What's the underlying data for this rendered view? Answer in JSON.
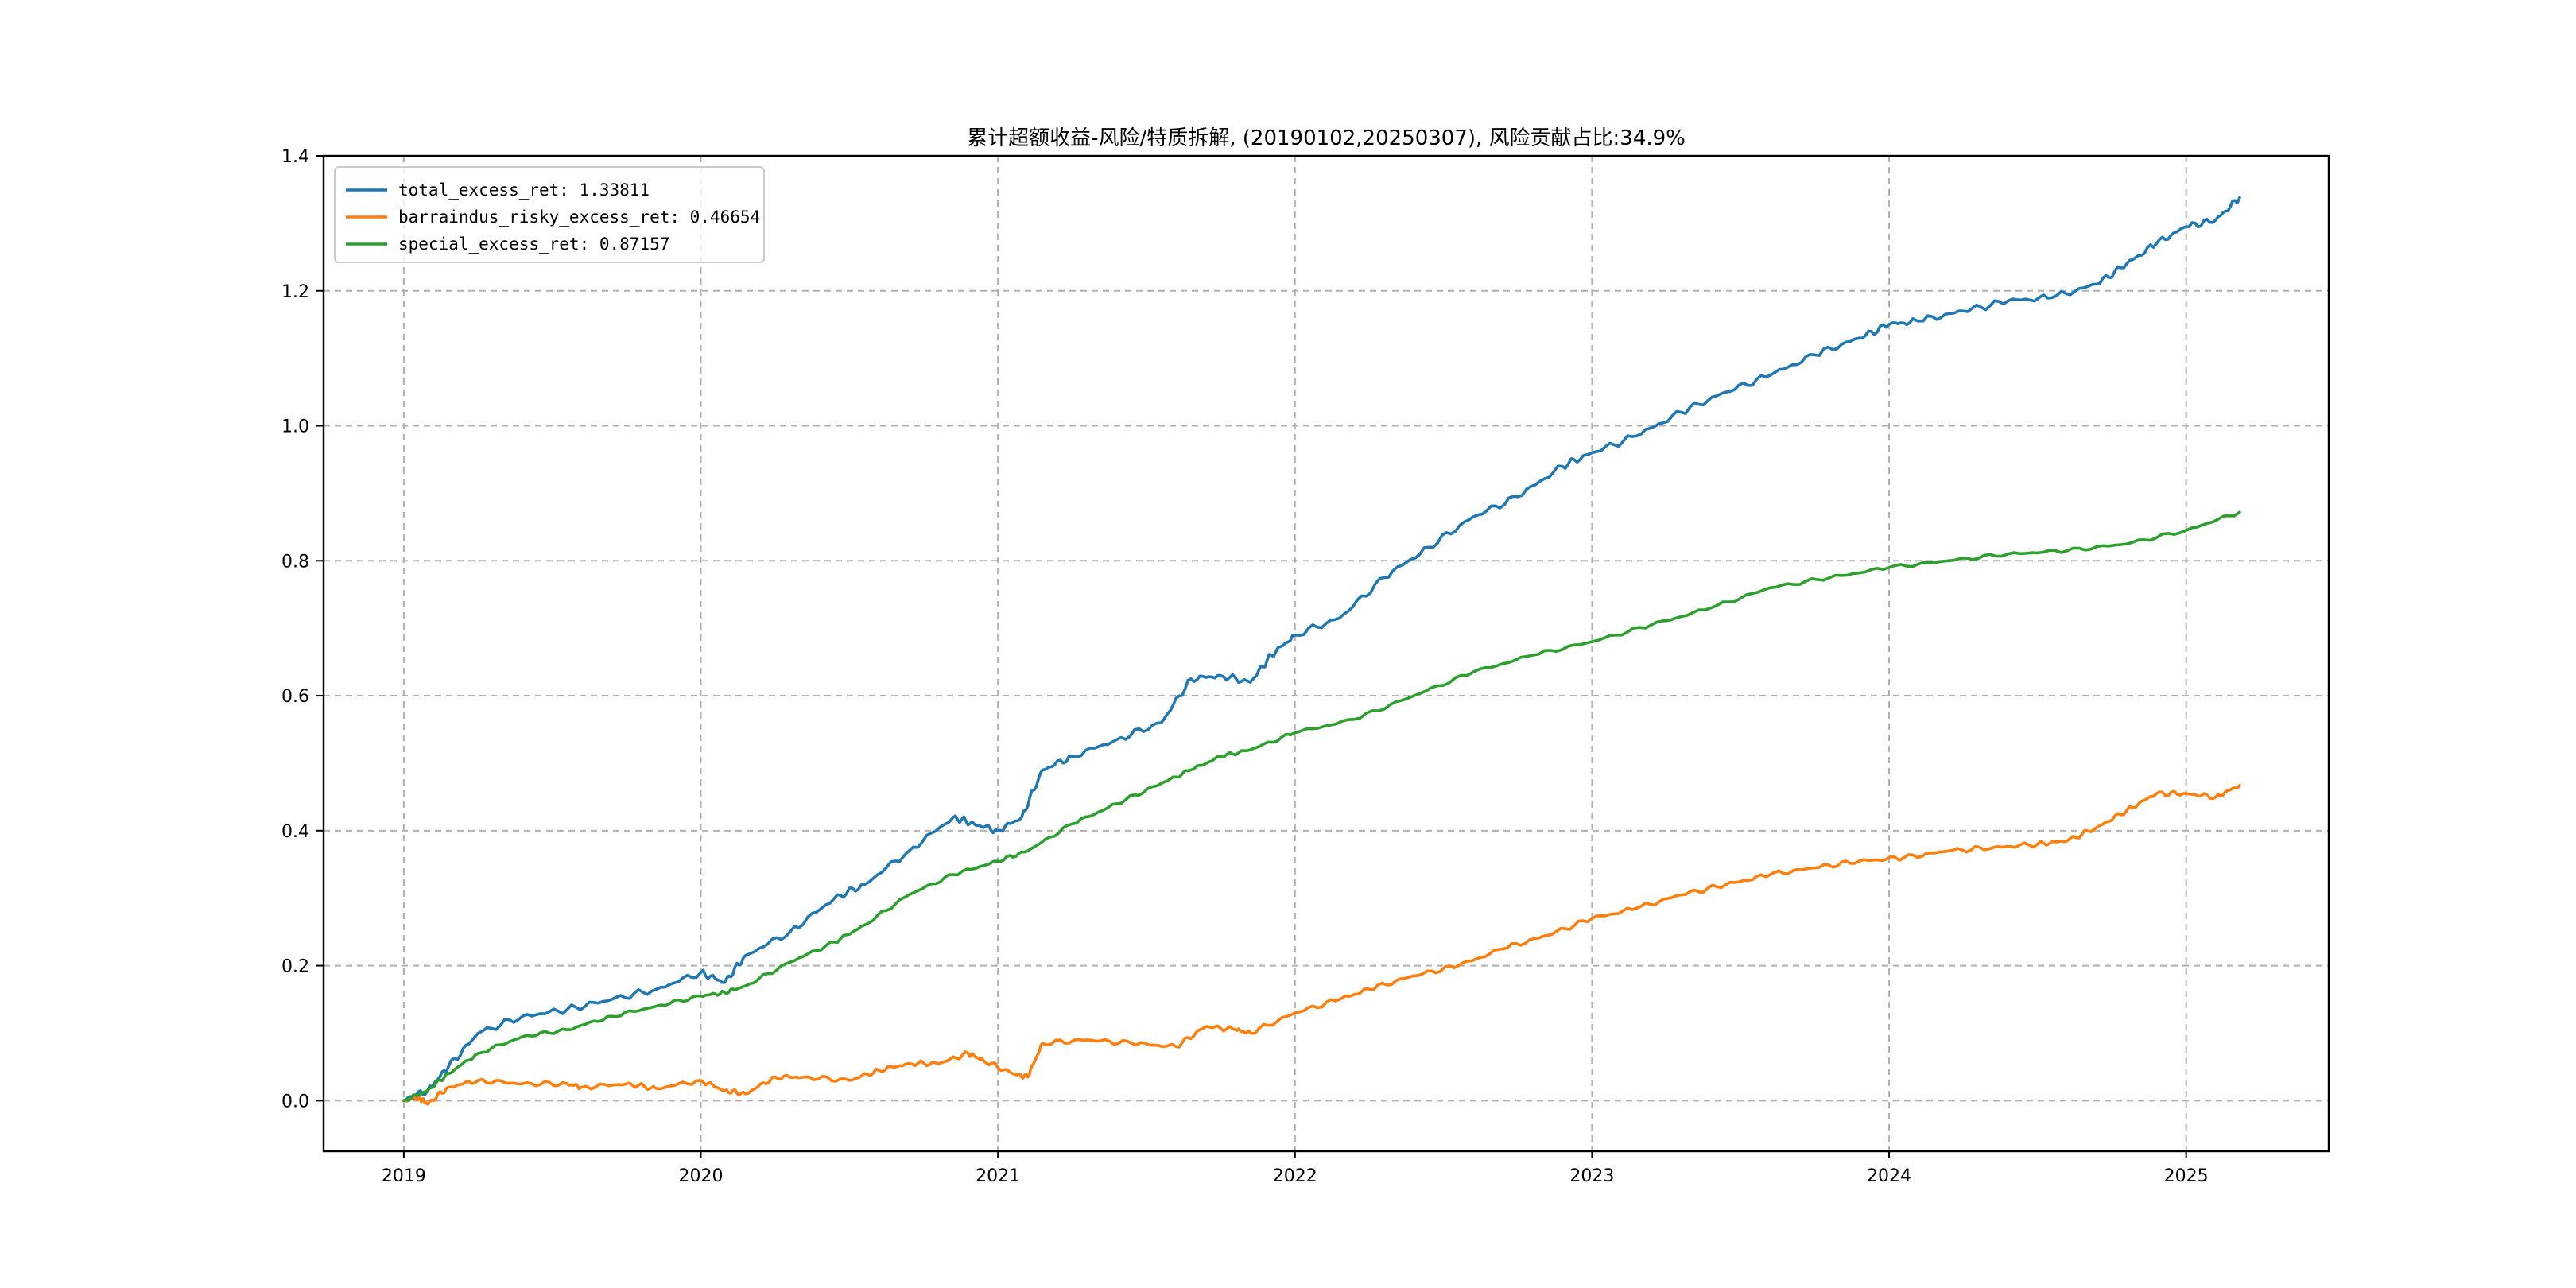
{
  "chart_data": {
    "type": "line",
    "title": "累计超额收益-风险/特质拆解, (20190102,20250307), 风险贡献占比:34.9%",
    "xlabel": "",
    "ylabel": "",
    "xlim": [
      2018.73,
      2025.48
    ],
    "ylim": [
      -0.075,
      1.4
    ],
    "xticks": [
      2019,
      2020,
      2021,
      2022,
      2023,
      2024,
      2025
    ],
    "xtick_labels": [
      "2019",
      "2020",
      "2021",
      "2022",
      "2023",
      "2024",
      "2025"
    ],
    "yticks": [
      0.0,
      0.2,
      0.4,
      0.6,
      0.8,
      1.0,
      1.2,
      1.4
    ],
    "ytick_labels": [
      "0.0",
      "0.2",
      "0.4",
      "0.6",
      "0.8",
      "1.0",
      "1.2",
      "1.4"
    ],
    "grid": true,
    "legend_position": "upper-left",
    "series": [
      {
        "name": "total_excess_ret: 1.33811",
        "color": "#1f77b4",
        "x": [
          2019.0,
          2019.08,
          2019.15,
          2019.25,
          2019.4,
          2019.55,
          2019.7,
          2019.85,
          2020.0,
          2020.08,
          2020.15,
          2020.3,
          2020.45,
          2020.55,
          2020.7,
          2020.85,
          2020.92,
          2021.0,
          2021.08,
          2021.15,
          2021.25,
          2021.4,
          2021.55,
          2021.65,
          2021.75,
          2021.85,
          2021.92,
          2022.0,
          2022.15,
          2022.3,
          2022.45,
          2022.6,
          2022.75,
          2022.9,
          2023.0,
          2023.15,
          2023.3,
          2023.45,
          2023.6,
          2023.75,
          2023.9,
          2024.0,
          2024.1,
          2024.25,
          2024.4,
          2024.55,
          2024.7,
          2024.8,
          2024.9,
          2025.0,
          2025.1,
          2025.18
        ],
        "y": [
          0.0,
          0.015,
          0.05,
          0.1,
          0.125,
          0.135,
          0.15,
          0.165,
          0.19,
          0.175,
          0.215,
          0.25,
          0.3,
          0.32,
          0.37,
          0.42,
          0.41,
          0.4,
          0.42,
          0.49,
          0.51,
          0.535,
          0.56,
          0.625,
          0.63,
          0.62,
          0.66,
          0.69,
          0.715,
          0.775,
          0.82,
          0.865,
          0.895,
          0.94,
          0.96,
          0.985,
          1.02,
          1.05,
          1.075,
          1.105,
          1.13,
          1.15,
          1.155,
          1.17,
          1.185,
          1.19,
          1.21,
          1.24,
          1.27,
          1.295,
          1.305,
          1.338
        ]
      },
      {
        "name": "barraindus_risky_excess_ret: 0.46654",
        "color": "#ff7f0e",
        "x": [
          2019.0,
          2019.05,
          2019.08,
          2019.15,
          2019.25,
          2019.4,
          2019.55,
          2019.6,
          2019.75,
          2019.85,
          2020.0,
          2020.08,
          2020.15,
          2020.25,
          2020.35,
          2020.5,
          2020.6,
          2020.7,
          2020.8,
          2020.9,
          2020.95,
          2021.05,
          2021.1,
          2021.15,
          2021.3,
          2021.45,
          2021.6,
          2021.7,
          2021.8,
          2021.85,
          2022.0,
          2022.15,
          2022.25,
          2022.4,
          2022.55,
          2022.7,
          2022.85,
          2023.0,
          2023.15,
          2023.3,
          2023.45,
          2023.6,
          2023.75,
          2023.9,
          2024.05,
          2024.2,
          2024.35,
          2024.5,
          2024.6,
          2024.7,
          2024.8,
          2024.9,
          2025.0,
          2025.1,
          2025.18
        ],
        "y": [
          0.0,
          0.005,
          -0.005,
          0.02,
          0.03,
          0.025,
          0.025,
          0.02,
          0.025,
          0.018,
          0.03,
          0.015,
          0.01,
          0.035,
          0.035,
          0.03,
          0.045,
          0.055,
          0.055,
          0.07,
          0.06,
          0.04,
          0.035,
          0.085,
          0.09,
          0.085,
          0.08,
          0.11,
          0.105,
          0.1,
          0.13,
          0.15,
          0.165,
          0.185,
          0.2,
          0.225,
          0.245,
          0.27,
          0.285,
          0.305,
          0.32,
          0.335,
          0.345,
          0.355,
          0.36,
          0.37,
          0.375,
          0.38,
          0.385,
          0.405,
          0.43,
          0.455,
          0.455,
          0.45,
          0.467
        ]
      },
      {
        "name": "special_excess_ret: 0.87157",
        "color": "#2ca02c",
        "x": [
          2019.0,
          2019.08,
          2019.15,
          2019.25,
          2019.4,
          2019.55,
          2019.7,
          2019.85,
          2020.0,
          2020.08,
          2020.15,
          2020.3,
          2020.45,
          2020.55,
          2020.7,
          2020.85,
          2021.0,
          2021.1,
          2021.25,
          2021.4,
          2021.55,
          2021.65,
          2021.75,
          2021.85,
          2022.0,
          2022.2,
          2022.4,
          2022.6,
          2022.8,
          2023.0,
          2023.2,
          2023.4,
          2023.6,
          2023.8,
          2024.0,
          2024.2,
          2024.4,
          2024.6,
          2024.8,
          2025.0,
          2025.18
        ],
        "y": [
          0.0,
          0.015,
          0.04,
          0.07,
          0.095,
          0.105,
          0.125,
          0.14,
          0.155,
          0.16,
          0.17,
          0.205,
          0.235,
          0.26,
          0.305,
          0.335,
          0.355,
          0.37,
          0.41,
          0.44,
          0.47,
          0.49,
          0.51,
          0.52,
          0.545,
          0.565,
          0.6,
          0.635,
          0.66,
          0.68,
          0.705,
          0.73,
          0.76,
          0.775,
          0.79,
          0.8,
          0.81,
          0.815,
          0.825,
          0.845,
          0.872
        ]
      }
    ]
  }
}
